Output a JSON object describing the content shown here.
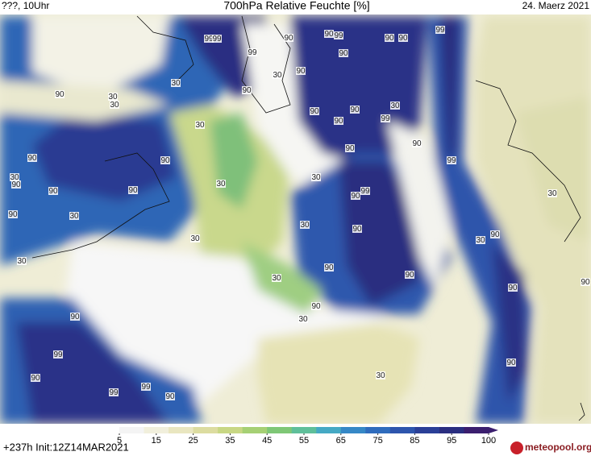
{
  "header": {
    "left": "???, 10Uhr",
    "title": "700hPa Relative Feuchte [%]",
    "date": "24. Maerz 2021"
  },
  "colorbar": {
    "ticks": [
      5,
      15,
      25,
      35,
      45,
      55,
      65,
      75,
      85,
      95,
      100
    ],
    "colors": [
      "#f4f4f4",
      "#f1efdc",
      "#e9e6c0",
      "#dcdca0",
      "#c8d784",
      "#a6d074",
      "#7fc776",
      "#5fbf9a",
      "#45a9c4",
      "#3688c6",
      "#2f6cbd",
      "#2d55ad",
      "#2a3f97",
      "#2a2e80",
      "#3b1e6e"
    ]
  },
  "footer": {
    "run": "+237h Init:12Z14MAR2021",
    "logo": "meteopool.org"
  },
  "contour_labels": [
    90,
    90,
    99,
    90,
    90,
    99,
    99,
    99,
    99,
    90,
    90,
    30,
    30,
    90,
    90,
    30,
    30,
    30,
    90,
    90,
    90,
    99,
    30,
    90,
    90,
    90,
    90,
    99,
    30,
    90,
    30,
    30,
    90,
    90,
    99,
    90,
    30,
    90,
    30,
    30,
    90,
    90,
    30,
    30,
    30,
    90,
    90,
    30,
    90,
    90,
    90,
    30,
    90,
    99,
    90,
    30,
    90,
    99,
    99,
    90
  ]
}
